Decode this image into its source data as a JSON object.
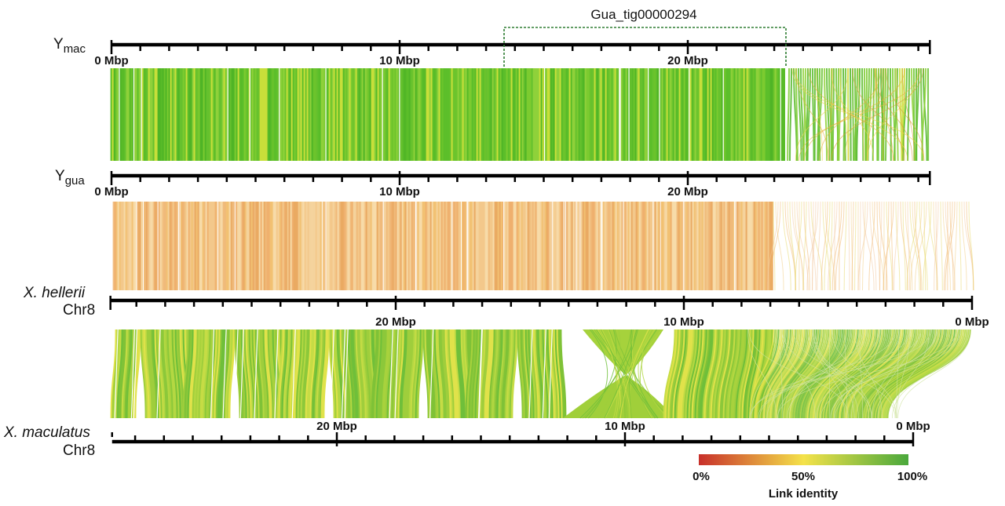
{
  "figure": {
    "bracket_label": "Gua_tig00000294",
    "tracks": [
      {
        "id": "ymac",
        "name": "Y",
        "sub": "mac",
        "length_mbp": 28.4,
        "reversed": false,
        "tick_labels": [
          "0 Mbp",
          "10 Mbp",
          "20 Mbp"
        ]
      },
      {
        "id": "ygua",
        "name": "Y",
        "sub": "gua",
        "length_mbp": 28.4,
        "reversed": false,
        "tick_labels": [
          "0 Mbp",
          "10 Mbp",
          "20 Mbp"
        ]
      },
      {
        "id": "xhel",
        "name": "X. hellerii",
        "chr": "Chr8",
        "length_mbp": 29.9,
        "reversed": true,
        "tick_labels": [
          "0 Mbp",
          "10 Mbp",
          "20 Mbp"
        ]
      },
      {
        "id": "xmac",
        "name": "X. maculatus",
        "chr": "Chr8",
        "length_mbp": 27.8,
        "reversed": true,
        "tick_labels": [
          "0 Mbp",
          "10 Mbp",
          "20 Mbp"
        ]
      }
    ],
    "bracket_range_mbp": [
      13.6,
      23.4
    ],
    "legend": {
      "title": "Link identity",
      "labels": [
        "0%",
        "50%",
        "100%"
      ],
      "colors": [
        "#c8302a",
        "#f4e24a",
        "#4aa83c"
      ]
    }
  }
}
